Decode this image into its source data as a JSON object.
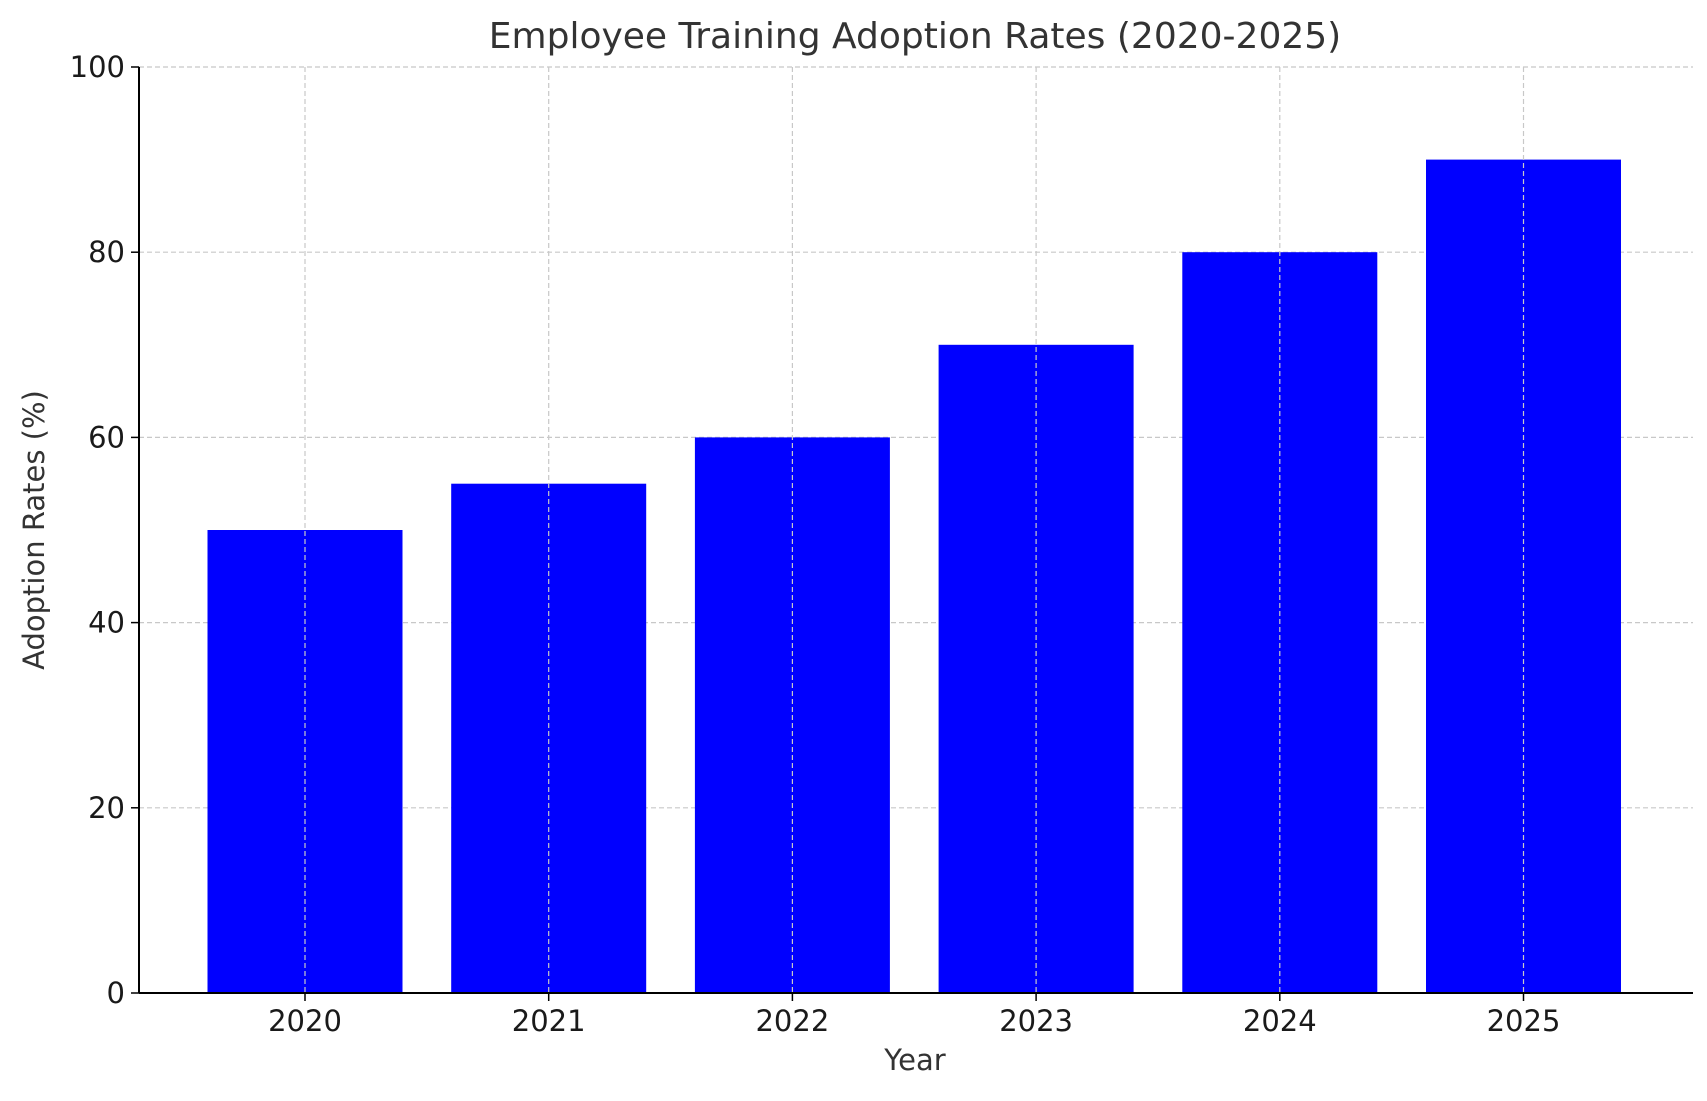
{
  "chart_data": {
    "type": "bar",
    "title": "Employee Training Adoption Rates (2020-2025)",
    "xlabel": "Year",
    "ylabel": "Adoption Rates (%)",
    "categories": [
      "2020",
      "2021",
      "2022",
      "2023",
      "2024",
      "2025"
    ],
    "values": [
      50,
      55,
      60,
      70,
      80,
      90
    ],
    "ylim": [
      0,
      100
    ],
    "yticks": [
      0,
      20,
      40,
      60,
      80,
      100
    ],
    "grid": true,
    "grid_style": "dashed",
    "legend": "none",
    "colors": {
      "bar": "#0000ff",
      "grid": "#c8c8c8",
      "axis": "#000000",
      "title": "#333333"
    }
  }
}
